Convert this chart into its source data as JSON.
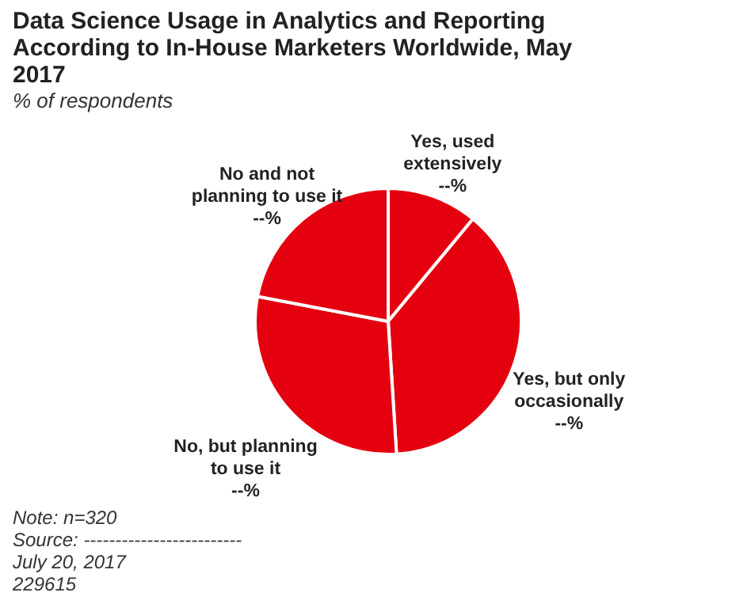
{
  "chart_data": {
    "type": "pie",
    "title": "Data Science Usage in Analytics and Reporting According to In-House Marketers Worldwide, May 2017",
    "subtitle": "% of respondents",
    "categories": [
      "Yes, used extensively",
      "Yes, but only occasionally",
      "No, but planning to use it",
      "No and not planning to use it"
    ],
    "values": [
      11,
      38,
      29,
      22
    ],
    "colors": [
      "#e4000f",
      "#e4000f",
      "#e4000f",
      "#e4000f"
    ],
    "value_labels": [
      "--%",
      "--%",
      "--%",
      "--%"
    ],
    "annotations": [
      "Note: n=320",
      "Source: -------------------------",
      "July 20, 2017",
      "229615"
    ]
  }
}
